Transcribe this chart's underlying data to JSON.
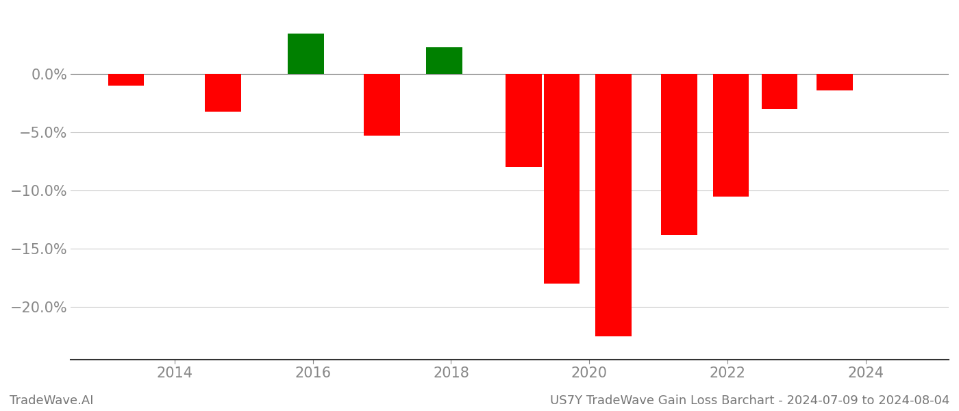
{
  "x_positions": [
    2013.3,
    2014.7,
    2015.9,
    2017.0,
    2017.9,
    2019.05,
    2019.6,
    2020.35,
    2021.3,
    2022.05,
    2022.75,
    2023.55
  ],
  "values": [
    -1.0,
    -3.2,
    3.5,
    -5.3,
    2.3,
    -8.0,
    -18.0,
    -22.5,
    -13.8,
    -10.5,
    -3.0,
    -1.4
  ],
  "bar_width": 0.52,
  "colors": [
    "red",
    "red",
    "green",
    "red",
    "green",
    "red",
    "red",
    "red",
    "red",
    "red",
    "red",
    "red"
  ],
  "yticks": [
    0.0,
    -5.0,
    -10.0,
    -15.0,
    -20.0
  ],
  "ylim": [
    -24.5,
    5.5
  ],
  "xlim": [
    2012.5,
    2025.2
  ],
  "xticks": [
    2014,
    2016,
    2018,
    2020,
    2022,
    2024
  ],
  "footer_left": "TradeWave.AI",
  "footer_right": "US7Y TradeWave Gain Loss Barchart - 2024-07-09 to 2024-08-04",
  "bg_color": "#ffffff",
  "grid_color": "#cccccc",
  "tick_color": "#888888",
  "footer_font_size": 13,
  "tick_font_size": 15
}
